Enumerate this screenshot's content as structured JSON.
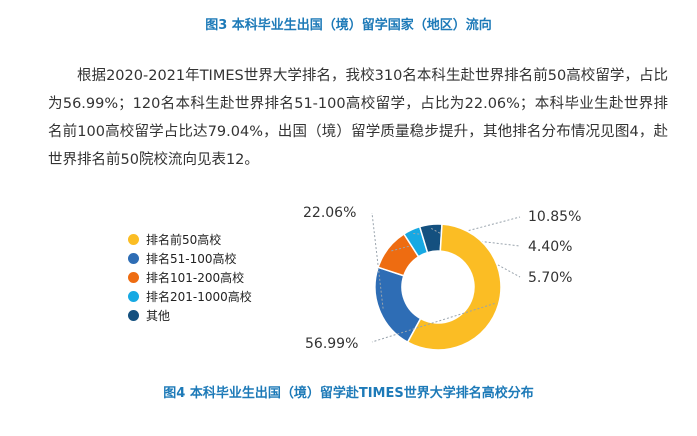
{
  "figure3_caption": "图3 本科毕业生出国（境）留学国家（地区）流向",
  "paragraph": "根据2020-2021年TIMES世界大学排名，我校310名本科生赴世界排名前50高校留学，占比为56.99%；120名本科生赴世界排名51-100高校留学，占比为22.06%；本科毕业生赴世界排名前100高校留学占比达79.04%，出国（境）留学质量稳步提升，其他排名分布情况见图4，赴世界排名前50院校流向见表12。",
  "figure4_caption": "图4 本科毕业生出国（境）留学赴TIMES世界大学排名高校分布",
  "chart_data": {
    "type": "pie",
    "donut": true,
    "categories": [
      "排名前50高校",
      "排名51-100高校",
      "排名101-200高校",
      "排名201-1000高校",
      "其他"
    ],
    "values": [
      56.99,
      22.06,
      10.85,
      4.4,
      5.7
    ],
    "labels": [
      "56.99%",
      "22.06%",
      "10.85%",
      "4.40%",
      "5.70%"
    ],
    "colors": [
      "#fbbd24",
      "#2e6db5",
      "#ee6c11",
      "#17a9e3",
      "#14507f"
    ],
    "legend_position": "left"
  }
}
